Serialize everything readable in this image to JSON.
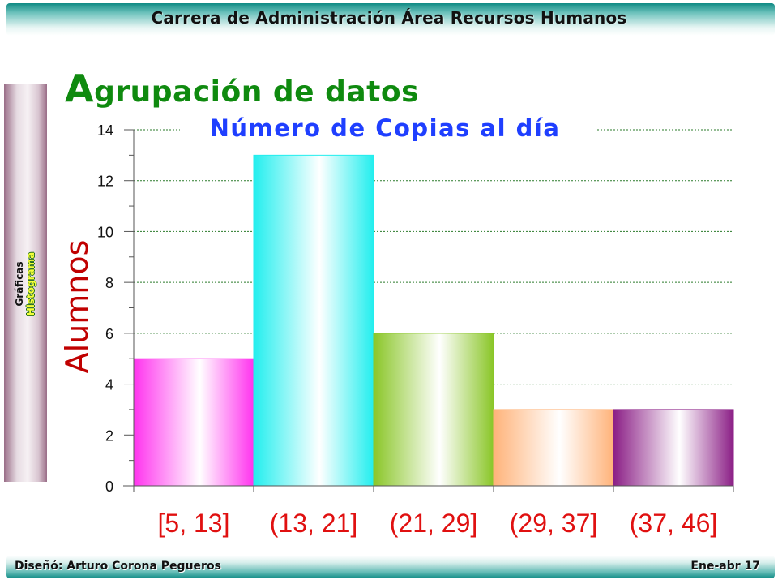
{
  "header": {
    "title": "Carrera de Administración Área Recursos Humanos"
  },
  "sidebar": {
    "category": "Gráficas",
    "subcategory": "Histograma"
  },
  "page": {
    "title_initial": "A",
    "title_rest": "grupación de datos"
  },
  "footer": {
    "left": "Diseñó: Arturo Corona Pegueros",
    "right": "Ene-abr 17"
  },
  "chart_data": {
    "type": "bar",
    "title": "Número de Copias al día",
    "ylabel": "Alumnos",
    "xlabel": "",
    "categories": [
      "[5, 13]",
      "(13, 21]",
      "(21, 29]",
      "(29, 37]",
      "(37, 46]"
    ],
    "values": [
      5,
      13,
      6,
      3,
      3
    ],
    "ylim": [
      0,
      14
    ],
    "yticks": [
      0,
      2,
      4,
      6,
      8,
      10,
      12,
      14
    ],
    "grid": true,
    "colors": [
      "#ff33ee",
      "#22eeee",
      "#8ac628",
      "#ffb37a",
      "#8b1f86"
    ],
    "title_color": "#1f3fff",
    "category_label_color": "#e01010",
    "ylabel_color": "#c00000"
  }
}
